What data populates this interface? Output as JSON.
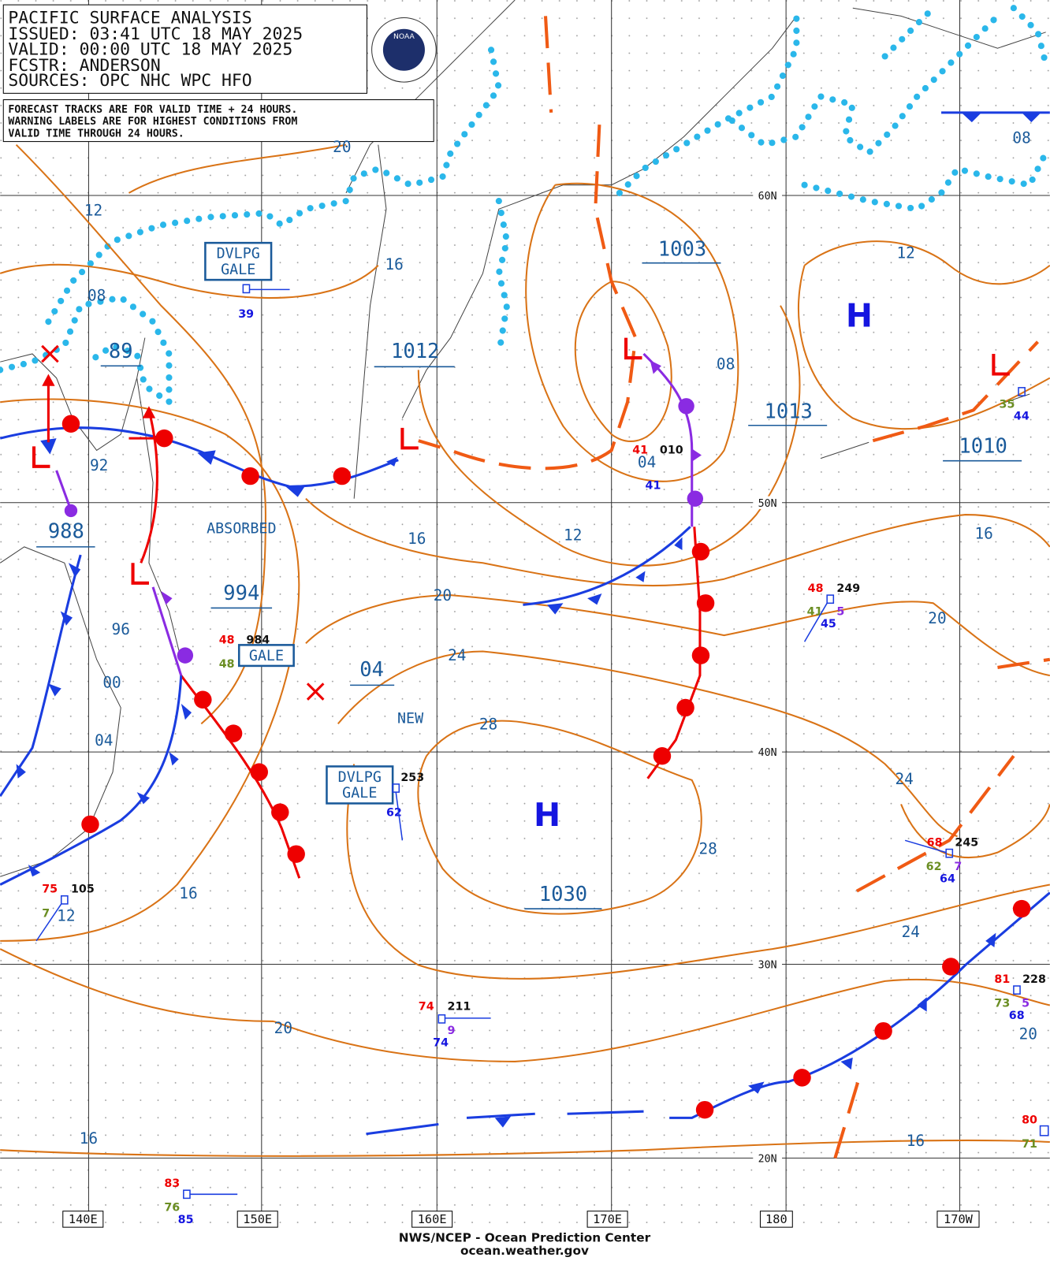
{
  "header": {
    "title": "PACIFIC SURFACE ANALYSIS",
    "issued": "ISSUED: 03:41 UTC 18 MAY 2025",
    "valid": "VALID:  00:00 UTC 18 MAY 2025",
    "forecaster": "FCSTR:  ANDERSON",
    "sources": "SOURCES: OPC NHC WPC HFO",
    "logo": "NOAA"
  },
  "note": [
    "FORECAST TRACKS ARE FOR VALID TIME + 24 HOURS.",
    "WARNING LABELS ARE FOR HIGHEST CONDITIONS FROM",
    "VALID TIME THROUGH 24 HOURS."
  ],
  "pressure_centers": [
    "1003",
    "1012",
    "1013",
    "1010",
    "988",
    "994",
    "89",
    "04",
    "1030"
  ],
  "isobar_labels": [
    "20",
    "12",
    "16",
    "08",
    "08",
    "12",
    "92",
    "16",
    "12",
    "16",
    "20",
    "20",
    "96",
    "24",
    "00",
    "28",
    "04",
    "24",
    "28",
    "16",
    "12",
    "24",
    "20",
    "20",
    "16",
    "16",
    "08",
    "04"
  ],
  "warnings": [
    [
      "DVLPG",
      "GALE"
    ],
    [
      "GALE"
    ],
    [
      "DVLPG",
      "GALE"
    ]
  ],
  "annotations": [
    "ABSORBED",
    "NEW"
  ],
  "highs": [
    "H",
    "H"
  ],
  "latitude_labels": [
    "60N",
    "50N",
    "40N",
    "30N",
    "20N"
  ],
  "longitude_labels": [
    "140E",
    "150E",
    "160E",
    "170E",
    "180",
    "170W"
  ],
  "station_values": [
    "39",
    "984",
    "48",
    "48",
    "010",
    "41",
    "41",
    "253",
    "62",
    "48",
    "249",
    "41",
    "5",
    "45",
    "68",
    "245",
    "62",
    "7",
    "64",
    "75",
    "105",
    "7",
    "74",
    "211",
    "9",
    "74",
    "81",
    "228",
    "73",
    "5",
    "68",
    "83",
    "76",
    "85",
    "80",
    "71",
    "35",
    "44"
  ],
  "footer": [
    "NWS/NCEP - Ocean Prediction Center",
    "ocean.weather.gov"
  ]
}
